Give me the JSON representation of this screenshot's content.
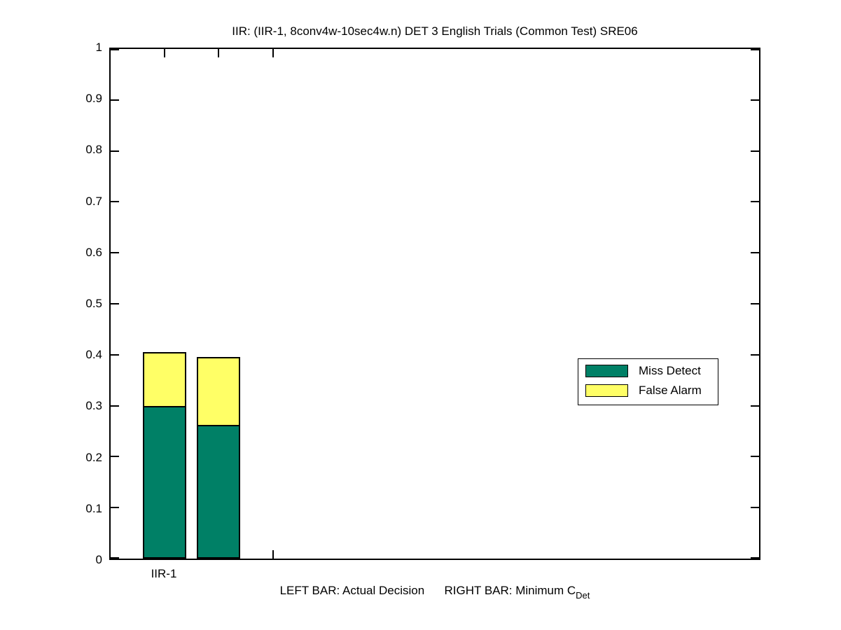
{
  "figure": {
    "background_color": "#FFFFFF",
    "axes_border_color": "#000000"
  },
  "chart_data": {
    "type": "bar",
    "stacked": true,
    "title": "IIR: (IIR-1, 8conv4w-10sec4w.n) DET 3 English Trials (Common Test) SRE06",
    "xlabel_main": "LEFT BAR: Actual Decision      RIGHT BAR: Minimum C",
    "xlabel_subscript": "Det",
    "categories": [
      "IIR-1"
    ],
    "xlim": [
      0.5,
      6.5
    ],
    "ylim": [
      0,
      1
    ],
    "yticks": [
      0,
      0.1,
      0.2,
      0.3,
      0.4,
      0.5,
      0.6,
      0.7,
      0.8,
      0.9,
      1
    ],
    "ytick_labels": [
      "0",
      "0.1",
      "0.2",
      "0.3",
      "0.4",
      "0.5",
      "0.6",
      "0.7",
      "0.8",
      "0.9",
      "1"
    ],
    "xticks": [
      1,
      1.5,
      2
    ],
    "xtick_labels": [
      "IIR-1",
      "",
      ""
    ],
    "grid": false,
    "bar_width_data_units": 0.4,
    "series": [
      {
        "name": "Miss Detect",
        "color": "#008066"
      },
      {
        "name": "False Alarm",
        "color": "#FFFF66"
      }
    ],
    "legend": {
      "position": "middle-right",
      "entries": [
        "Miss Detect",
        "False Alarm"
      ]
    },
    "bars": [
      {
        "category": "IIR-1",
        "bar_role": "Actual Decision (left bar)",
        "x": 1.0,
        "miss_detect": 0.3,
        "false_alarm": 0.105,
        "total": 0.405
      },
      {
        "category": "IIR-1",
        "bar_role": "Minimum CDet (right bar)",
        "x": 1.5,
        "miss_detect": 0.262,
        "false_alarm": 0.134,
        "total": 0.396
      }
    ]
  }
}
